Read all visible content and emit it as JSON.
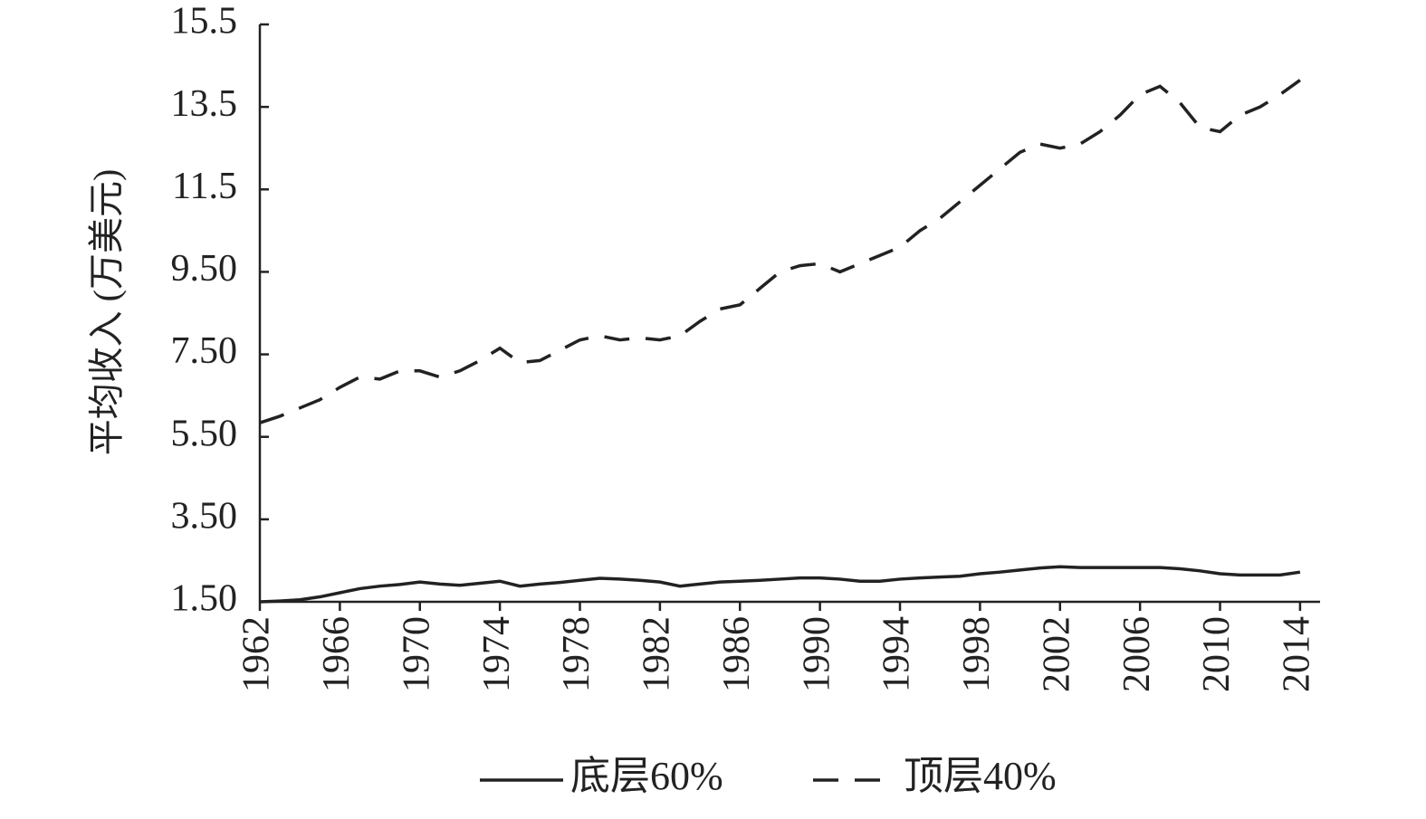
{
  "chart_data": {
    "type": "line",
    "y_label": "平均收入 (万美元)",
    "x": [
      1962,
      1963,
      1964,
      1965,
      1966,
      1967,
      1968,
      1969,
      1970,
      1971,
      1972,
      1973,
      1974,
      1975,
      1976,
      1977,
      1978,
      1979,
      1980,
      1981,
      1982,
      1983,
      1984,
      1985,
      1986,
      1987,
      1988,
      1989,
      1990,
      1991,
      1992,
      1993,
      1994,
      1995,
      1996,
      1997,
      1998,
      1999,
      2000,
      2001,
      2002,
      2003,
      2004,
      2005,
      2006,
      2007,
      2008,
      2009,
      2010,
      2011,
      2012,
      2013,
      2014
    ],
    "series": [
      {
        "name": "底层60%",
        "color": "#222222",
        "linestyle": "solid",
        "values": [
          1.5,
          1.52,
          1.55,
          1.62,
          1.72,
          1.82,
          1.88,
          1.92,
          1.98,
          1.93,
          1.9,
          1.95,
          2.0,
          1.88,
          1.93,
          1.97,
          2.02,
          2.07,
          2.05,
          2.02,
          1.98,
          1.88,
          1.93,
          1.98,
          2.0,
          2.02,
          2.05,
          2.08,
          2.08,
          2.05,
          2.0,
          2.0,
          2.05,
          2.08,
          2.1,
          2.12,
          2.18,
          2.22,
          2.27,
          2.32,
          2.35,
          2.33,
          2.33,
          2.33,
          2.33,
          2.33,
          2.3,
          2.25,
          2.18,
          2.15,
          2.15,
          2.15,
          2.22
        ]
      },
      {
        "name": "顶层40%",
        "color": "#222222",
        "linestyle": "dashed",
        "values": [
          5.84,
          6.0,
          6.2,
          6.4,
          6.7,
          6.95,
          6.9,
          7.1,
          7.1,
          6.95,
          7.1,
          7.35,
          7.65,
          7.3,
          7.35,
          7.6,
          7.85,
          7.95,
          7.85,
          7.9,
          7.85,
          7.95,
          8.3,
          8.6,
          8.7,
          9.1,
          9.5,
          9.65,
          9.7,
          9.5,
          9.7,
          9.9,
          10.1,
          10.5,
          10.8,
          11.2,
          11.6,
          12.0,
          12.4,
          12.6,
          12.5,
          12.6,
          12.9,
          13.3,
          13.8,
          14.0,
          13.6,
          13.0,
          12.9,
          13.3,
          13.5,
          13.8,
          14.15
        ]
      }
    ],
    "xlim": [
      1962,
      2015
    ],
    "xticks": [
      1962,
      1966,
      1970,
      1974,
      1978,
      1982,
      1986,
      1990,
      1994,
      1998,
      2002,
      2006,
      2010,
      2014
    ],
    "ylim": [
      1.5,
      15.5
    ],
    "yticks": [
      {
        "value": 1.5,
        "label": "1.50"
      },
      {
        "value": 3.5,
        "label": "3.50"
      },
      {
        "value": 5.5,
        "label": "5.50"
      },
      {
        "value": 7.5,
        "label": "7.50"
      },
      {
        "value": 9.5,
        "label": "9.50"
      },
      11.5,
      13.5,
      15.5
    ],
    "legend": "bottom"
  }
}
